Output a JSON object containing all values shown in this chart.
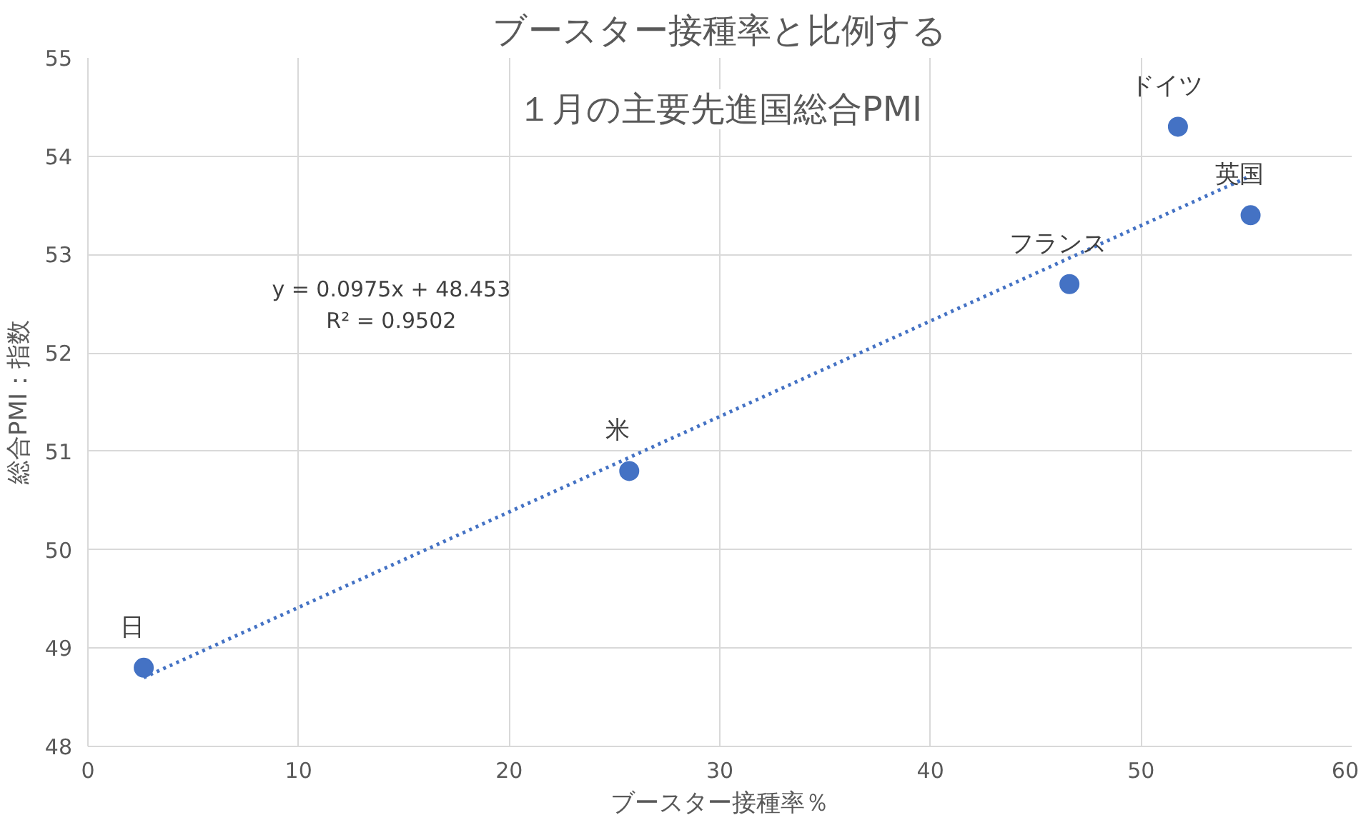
{
  "chart_data": {
    "type": "scatter",
    "title": "ブースター接種率と比例する",
    "subtitle": "１月の主要先進国総合PMI",
    "xlabel": "ブースター接種率％",
    "ylabel": "総合PMI：指数",
    "series": [
      {
        "color": "#4472c4",
        "marker": "circle",
        "x": [
          2.65,
          25.7,
          46.6,
          51.75,
          55.2
        ],
        "values": [
          48.8,
          50.8,
          52.7,
          54.3,
          53.4
        ]
      },
      {
        "type": "line",
        "color": "#4472c4",
        "line_style": "dotted",
        "x": [
          2.65,
          55.2
        ],
        "values": [
          48.7,
          53.8
        ]
      }
    ],
    "annotations": [
      {
        "text": "日",
        "x": 2.65,
        "y": 48.8
      },
      {
        "text": "米",
        "x": 25.7,
        "y": 50.8
      },
      {
        "text": "フランス",
        "x": 46.6,
        "y": 52.7
      },
      {
        "text": "ドイツ",
        "x": 51.75,
        "y": 54.3
      },
      {
        "text": "英国",
        "x": 55.2,
        "y": 53.4
      },
      "y = 0.0975x + 48.453\nR² = 0.9502"
    ],
    "xlim": [
      0,
      60
    ],
    "ylim": [
      48,
      55
    ],
    "xticks": [
      0,
      10,
      20,
      30,
      40,
      50,
      60
    ],
    "yticks": [
      48,
      49,
      50,
      51,
      52,
      53,
      54,
      55
    ],
    "grid": true
  }
}
